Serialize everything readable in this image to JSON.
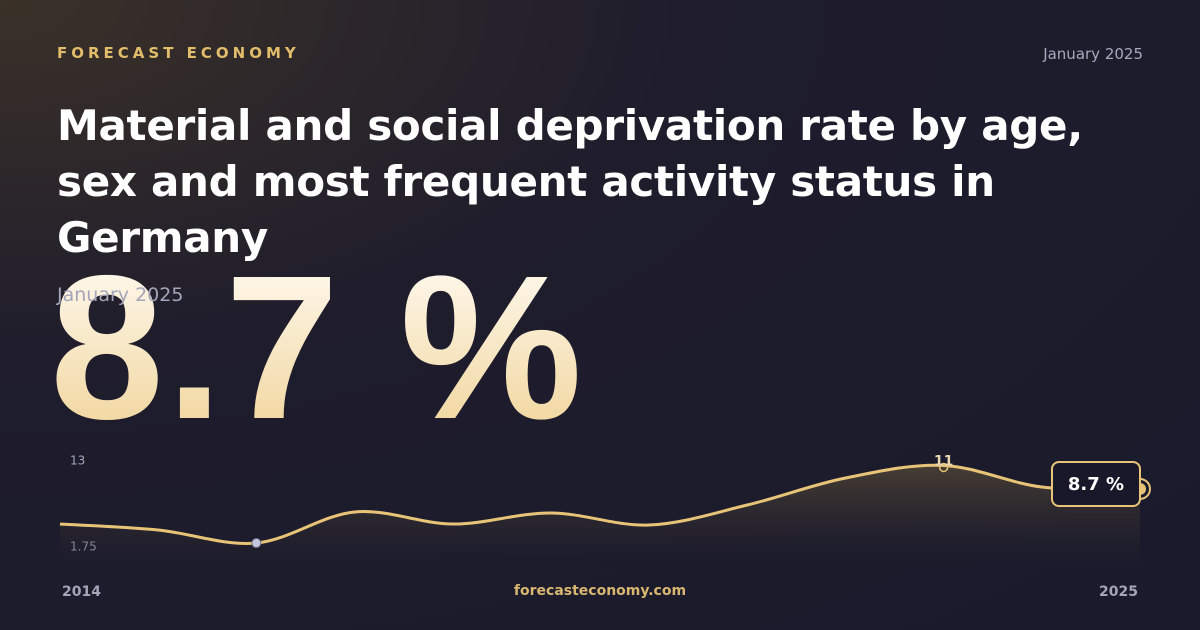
{
  "brand": "FORECAST ECONOMY",
  "date": "January 2025",
  "title": "Material and social deprivation rate by age, sex and most frequent activity status in Germany",
  "headline": {
    "date": "January 2025",
    "value": 8.7,
    "label": "8.7 %"
  },
  "footer": "forecasteconomy.com",
  "chart_data": {
    "type": "line",
    "x": [
      2014,
      2015,
      2016,
      2017,
      2018,
      2019,
      2020,
      2021,
      2022,
      2023,
      2024,
      2025
    ],
    "series": [
      {
        "color": "#e8c478",
        "values": [
          5.27,
          4.69,
          3.41,
          6.45,
          5.27,
          6.35,
          5.17,
          7.13,
          9.77,
          11,
          8.89,
          8.7
        ],
        "value_labels": [
          null,
          null,
          null,
          null,
          null,
          null,
          null,
          null,
          null,
          "11",
          null,
          "8.7 %"
        ]
      }
    ],
    "xlim": [
      2014,
      2025
    ],
    "xticks": [
      2014,
      2025
    ],
    "ylim": [
      1.75,
      13
    ],
    "yticks": [
      13,
      1.75
    ]
  }
}
